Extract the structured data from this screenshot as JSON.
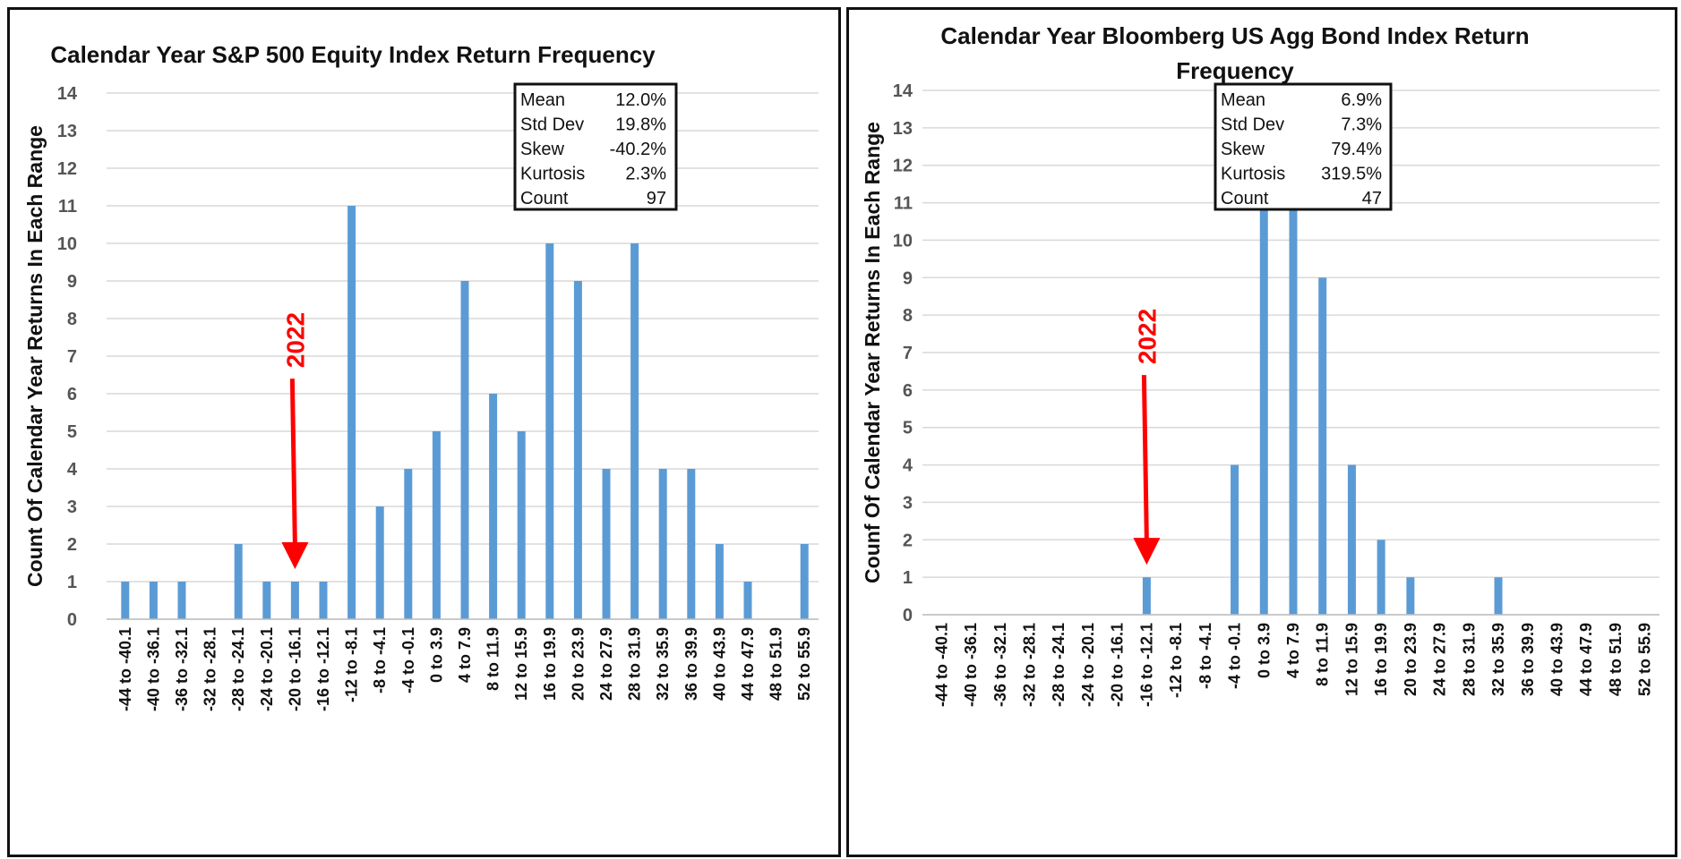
{
  "colors": {
    "bar": "#5b9bd5",
    "annotation": "#ff0000",
    "grid": "#d9d9d9"
  },
  "chart_data": [
    {
      "type": "bar",
      "title": "Calendar Year S&P 500 Equity Index Return Frequency",
      "xlabel": "",
      "ylabel": "Count Of Calendar Year Returns In Each Range",
      "ylim": [
        0,
        14
      ],
      "yticks": [
        0,
        1,
        2,
        3,
        4,
        5,
        6,
        7,
        8,
        9,
        10,
        11,
        12,
        13,
        14
      ],
      "grid": true,
      "categories": [
        "-44 to -40.1",
        "-40 to -36.1",
        "-36 to -32.1",
        "-32 to -28.1",
        "-28 to -24.1",
        "-24 to -20.1",
        "-20 to -16.1",
        "-16 to -12.1",
        "-12 to -8.1",
        "-8 to -4.1",
        "-4 to -0.1",
        "0 to 3.9",
        "4 to 7.9",
        "8 to 11.9",
        "12 to 15.9",
        "16 to 19.9",
        "20 to 23.9",
        "24 to 27.9",
        "28 to 31.9",
        "32 to 35.9",
        "36 to 39.9",
        "40 to 43.9",
        "44 to 47.9",
        "48 to 51.9",
        "52 to 55.9"
      ],
      "values": [
        1,
        1,
        1,
        0,
        2,
        1,
        1,
        1,
        11,
        3,
        4,
        5,
        9,
        6,
        5,
        10,
        9,
        4,
        10,
        4,
        4,
        2,
        1,
        0,
        2
      ],
      "annotation": {
        "text": "2022",
        "category": "-20 to -16.1"
      },
      "stats_box": {
        "placement": "top-right",
        "rows": [
          {
            "label": "Mean",
            "value": "12.0%"
          },
          {
            "label": "Std Dev",
            "value": "19.8%"
          },
          {
            "label": "Skew",
            "value": "-40.2%"
          },
          {
            "label": "Kurtosis",
            "value": "2.3%"
          },
          {
            "label": "Count",
            "value": "97"
          }
        ]
      }
    },
    {
      "type": "bar",
      "title": "Calendar Year Bloomberg US Agg Bond Index Return Frequency",
      "title_lines": [
        "Calendar Year Bloomberg US Agg Bond Index Return",
        "Frequency"
      ],
      "xlabel": "",
      "ylabel": "Counf Of Calendar Year Returns In Each Range",
      "ylim": [
        0,
        14
      ],
      "yticks": [
        0,
        1,
        2,
        3,
        4,
        5,
        6,
        7,
        8,
        9,
        10,
        11,
        12,
        13,
        14
      ],
      "grid": true,
      "categories": [
        "-44 to -40.1",
        "-40 to -36.1",
        "-36 to -32.1",
        "-32 to -28.1",
        "-28 to -24.1",
        "-24 to -20.1",
        "-20 to -16.1",
        "-16 to -12.1",
        "-12 to -8.1",
        "-8 to -4.1",
        "-4 to -0.1",
        "0 to 3.9",
        "4 to 7.9",
        "8 to 11.9",
        "12 to 15.9",
        "16 to 19.9",
        "20 to 23.9",
        "24 to 27.9",
        "28 to 31.9",
        "32 to 35.9",
        "36 to 39.9",
        "40 to 43.9",
        "44 to 47.9",
        "48 to 51.9",
        "52 to 55.9"
      ],
      "values": [
        0,
        0,
        0,
        0,
        0,
        0,
        0,
        1,
        0,
        0,
        4,
        11,
        14,
        9,
        4,
        2,
        1,
        0,
        0,
        1,
        0,
        0,
        0,
        0,
        0
      ],
      "annotation": {
        "text": "2022",
        "category": "-16 to -12.1"
      },
      "stats_box": {
        "placement": "top-right",
        "rows": [
          {
            "label": "Mean",
            "value": "6.9%"
          },
          {
            "label": "Std Dev",
            "value": "7.3%"
          },
          {
            "label": "Skew",
            "value": "79.4%"
          },
          {
            "label": "Kurtosis",
            "value": "319.5%"
          },
          {
            "label": "Count",
            "value": "47"
          }
        ]
      }
    }
  ]
}
